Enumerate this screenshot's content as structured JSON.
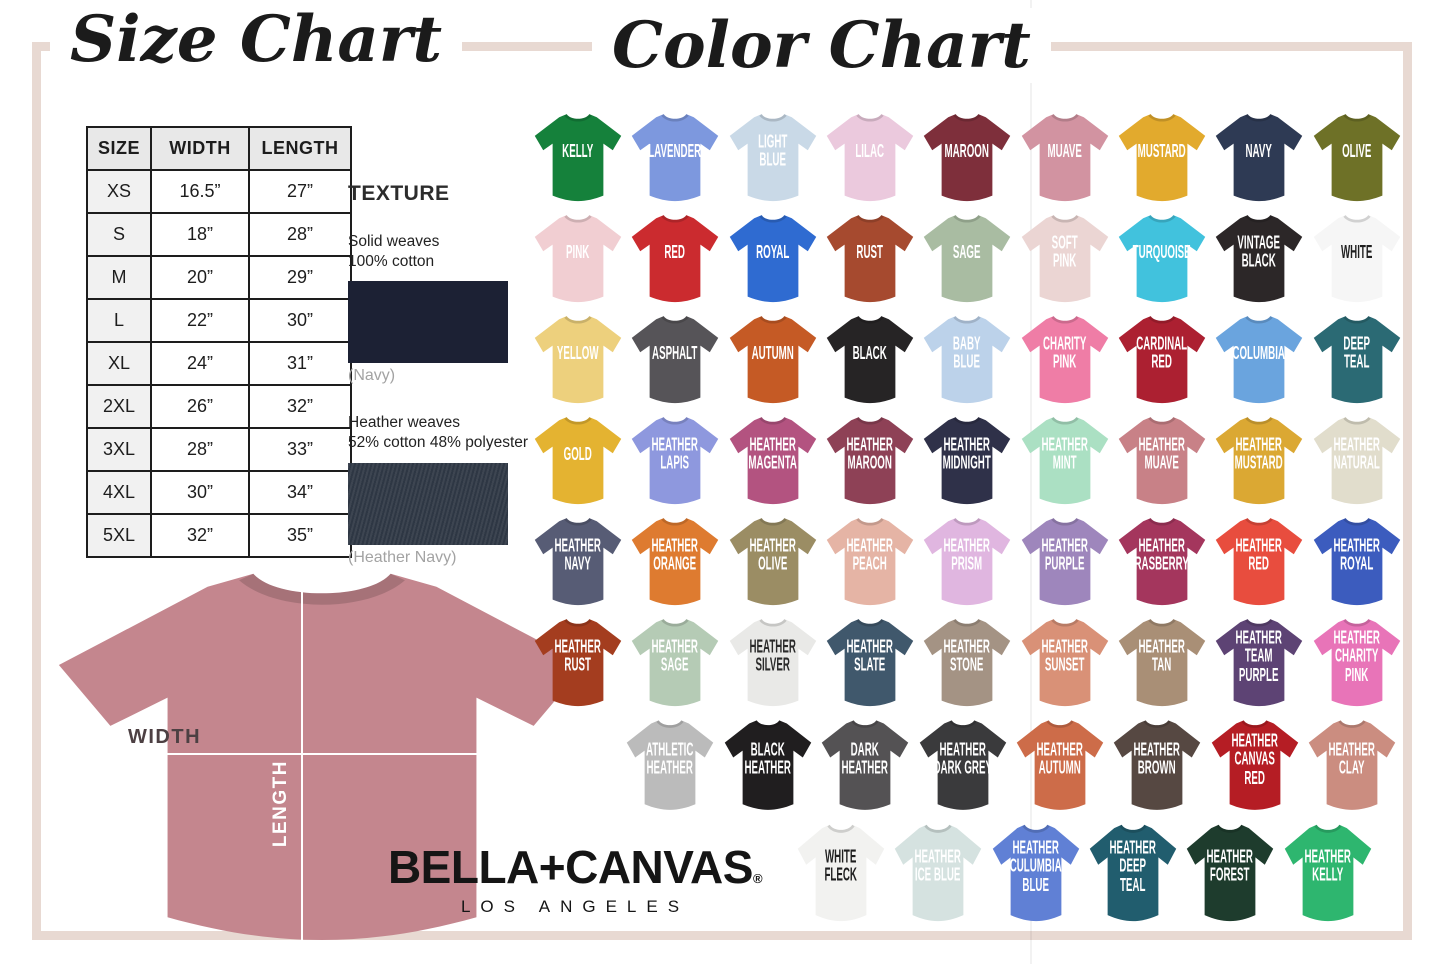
{
  "size_chart": {
    "title": "Size Chart",
    "table": {
      "headers": [
        "SIZE",
        "WIDTH",
        "LENGTH"
      ],
      "rows": [
        [
          "XS",
          "16.5”",
          "27”"
        ],
        [
          "S",
          "18”",
          "28”"
        ],
        [
          "M",
          "20”",
          "29”"
        ],
        [
          "L",
          "22”",
          "30”"
        ],
        [
          "XL",
          "24”",
          "31”"
        ],
        [
          "2XL",
          "26”",
          "32”"
        ],
        [
          "3XL",
          "28”",
          "33”"
        ],
        [
          "4XL",
          "30”",
          "34”"
        ],
        [
          "5XL",
          "32”",
          "35”"
        ]
      ]
    },
    "texture": {
      "heading": "TEXTURE",
      "solid_desc": "Solid weaves\n100% cotton",
      "solid_caption": "(Navy)",
      "solid_hex": "#1c2134",
      "heather_desc": "Heather weaves\n52% cotton 48% polyester",
      "heather_caption": "(Heather Navy)",
      "heather_hex": "#2e3744"
    },
    "mockup": {
      "width_label": "WIDTH",
      "length_label": "LENGTH",
      "shirt_hex": "#c4868e"
    }
  },
  "brand": {
    "name": "BELLA+CANVAS",
    "registered": "®",
    "city": "LOS ANGELES"
  },
  "frame_color": "#e8d9d2",
  "color_chart": {
    "title": "Color Chart",
    "rows": [
      [
        {
          "name": "Kelly",
          "lines": [
            "KELLY"
          ],
          "hex": "#15813b",
          "text": "#ffffff"
        },
        {
          "name": "Lavender",
          "lines": [
            "LAVENDER"
          ],
          "hex": "#7d98de",
          "text": "#ffffff"
        },
        {
          "name": "Light Blue",
          "lines": [
            "LIGHT",
            "BLUE"
          ],
          "hex": "#c9d9e7",
          "text": "#ffffff"
        },
        {
          "name": "Lilac",
          "lines": [
            "LILAC"
          ],
          "hex": "#ebc9dd",
          "text": "#ffffff"
        },
        {
          "name": "Maroon",
          "lines": [
            "MAROON"
          ],
          "hex": "#7e2f3b",
          "text": "#ffffff"
        },
        {
          "name": "Muave",
          "lines": [
            "MUAVE"
          ],
          "hex": "#d293a1",
          "text": "#ffffff"
        },
        {
          "name": "Mustard",
          "lines": [
            "MUSTARD"
          ],
          "hex": "#e2aa2d",
          "text": "#ffffff"
        },
        {
          "name": "Navy",
          "lines": [
            "NAVY"
          ],
          "hex": "#2e3a54",
          "text": "#ffffff"
        },
        {
          "name": "Olive",
          "lines": [
            "OLIVE"
          ],
          "hex": "#6e7127",
          "text": "#ffffff"
        }
      ],
      [
        {
          "name": "Pink",
          "lines": [
            "PINK"
          ],
          "hex": "#f1ced2",
          "text": "#ffffff"
        },
        {
          "name": "Red",
          "lines": [
            "RED"
          ],
          "hex": "#cb2b2f",
          "text": "#ffffff"
        },
        {
          "name": "Royal",
          "lines": [
            "ROYAL"
          ],
          "hex": "#2f6bd1",
          "text": "#ffffff"
        },
        {
          "name": "Rust",
          "lines": [
            "RUST"
          ],
          "hex": "#a64a2f",
          "text": "#ffffff"
        },
        {
          "name": "Sage",
          "lines": [
            "SAGE"
          ],
          "hex": "#a9bca2",
          "text": "#ffffff"
        },
        {
          "name": "Soft Pink",
          "lines": [
            "SOFT",
            "PINK"
          ],
          "hex": "#ebd5d3",
          "text": "#ffffff"
        },
        {
          "name": "Turquoise",
          "lines": [
            "TURQUOISE"
          ],
          "hex": "#41c2dd",
          "text": "#ffffff"
        },
        {
          "name": "Vintage Black",
          "lines": [
            "VINTAGE",
            "BLACK"
          ],
          "hex": "#2c2728",
          "text": "#ffffff"
        },
        {
          "name": "White",
          "lines": [
            "WHITE"
          ],
          "hex": "#f6f6f6",
          "text": "#1f1f1f"
        }
      ],
      [
        {
          "name": "Yellow",
          "lines": [
            "YELLOW"
          ],
          "hex": "#edd07d",
          "text": "#ffffff"
        },
        {
          "name": "Asphalt",
          "lines": [
            "ASPHALT"
          ],
          "hex": "#565458",
          "text": "#ffffff"
        },
        {
          "name": "Autumn",
          "lines": [
            "AUTUMN"
          ],
          "hex": "#c55a25",
          "text": "#ffffff"
        },
        {
          "name": "Black",
          "lines": [
            "BLACK"
          ],
          "hex": "#262425",
          "text": "#ffffff"
        },
        {
          "name": "Baby Blue",
          "lines": [
            "BABY",
            "BLUE"
          ],
          "hex": "#bcd2ea",
          "text": "#ffffff"
        },
        {
          "name": "Charity Pink",
          "lines": [
            "CHARITY",
            "PINK"
          ],
          "hex": "#ef7da6",
          "text": "#ffffff"
        },
        {
          "name": "Cardinal Red",
          "lines": [
            "CARDINAL",
            "RED"
          ],
          "hex": "#ac2031",
          "text": "#ffffff"
        },
        {
          "name": "Columbia",
          "lines": [
            "COLUMBIA"
          ],
          "hex": "#6aa4de",
          "text": "#ffffff"
        },
        {
          "name": "Deep Teal",
          "lines": [
            "DEEP",
            "TEAL"
          ],
          "hex": "#2b6a74",
          "text": "#ffffff"
        }
      ],
      [
        {
          "name": "Gold",
          "lines": [
            "GOLD"
          ],
          "hex": "#e4b331",
          "text": "#ffffff"
        },
        {
          "name": "Heather Lapis",
          "lines": [
            "HEATHER",
            "LAPIS"
          ],
          "hex": "#8e98de",
          "text": "#ffffff"
        },
        {
          "name": "Heather Magenta",
          "lines": [
            "HEATHER",
            "MAGENTA"
          ],
          "hex": "#b35380",
          "text": "#ffffff"
        },
        {
          "name": "Heather Maroon",
          "lines": [
            "HEATHER",
            "MAROON"
          ],
          "hex": "#8e4156",
          "text": "#ffffff"
        },
        {
          "name": "Heather Midnight",
          "lines": [
            "HEATHER",
            "MIDNIGHT"
          ],
          "hex": "#2f3149",
          "text": "#ffffff"
        },
        {
          "name": "Heather Mint",
          "lines": [
            "HEATHER",
            "MINT"
          ],
          "hex": "#abe0c3",
          "text": "#ffffff"
        },
        {
          "name": "Heather Muave",
          "lines": [
            "HEATHER",
            "MUAVE"
          ],
          "hex": "#c88187",
          "text": "#ffffff"
        },
        {
          "name": "Heather Mustard",
          "lines": [
            "HEATHER",
            "MUSTARD"
          ],
          "hex": "#dba833",
          "text": "#ffffff"
        },
        {
          "name": "Heather Natural",
          "lines": [
            "HEATHER",
            "NATURAL"
          ],
          "hex": "#e1ddcc",
          "text": "#ffffff"
        }
      ],
      [
        {
          "name": "Heather Navy",
          "lines": [
            "HEATHER",
            "NAVY"
          ],
          "hex": "#575c75",
          "text": "#ffffff"
        },
        {
          "name": "Heather Orange",
          "lines": [
            "HEATHER",
            "ORANGE"
          ],
          "hex": "#de7b30",
          "text": "#ffffff"
        },
        {
          "name": "Heather Olive",
          "lines": [
            "HEATHER",
            "OLIVE"
          ],
          "hex": "#9b8d64",
          "text": "#ffffff"
        },
        {
          "name": "Heather Peach",
          "lines": [
            "HEATHER",
            "PEACH"
          ],
          "hex": "#e5b4a5",
          "text": "#ffffff"
        },
        {
          "name": "Heather Prism",
          "lines": [
            "HEATHER",
            "PRISM"
          ],
          "hex": "#e0b6e0",
          "text": "#ffffff"
        },
        {
          "name": "Heather Purple",
          "lines": [
            "HEATHER",
            "PURPLE"
          ],
          "hex": "#9e86bc",
          "text": "#ffffff"
        },
        {
          "name": "Heather Rasberry",
          "lines": [
            "HEATHER",
            "RASBERRY"
          ],
          "hex": "#a4365d",
          "text": "#ffffff"
        },
        {
          "name": "Heather Red",
          "lines": [
            "HEATHER",
            "RED"
          ],
          "hex": "#e84d3e",
          "text": "#ffffff"
        },
        {
          "name": "Heather Royal",
          "lines": [
            "HEATHER",
            "ROYAL"
          ],
          "hex": "#3c5cbe",
          "text": "#ffffff"
        }
      ],
      [
        {
          "name": "Heather Rust",
          "lines": [
            "HEATHER",
            "RUST"
          ],
          "hex": "#a43d1f",
          "text": "#ffffff"
        },
        {
          "name": "Heather Sage",
          "lines": [
            "HEATHER",
            "SAGE"
          ],
          "hex": "#b5cbb5",
          "text": "#ffffff"
        },
        {
          "name": "Heather Silver",
          "lines": [
            "HEATHER",
            "SILVER"
          ],
          "hex": "#e9e9e7",
          "text": "#2a2a2a"
        },
        {
          "name": "Heather Slate",
          "lines": [
            "HEATHER",
            "SLATE"
          ],
          "hex": "#40586c",
          "text": "#ffffff"
        },
        {
          "name": "Heather Stone",
          "lines": [
            "HEATHER",
            "STONE"
          ],
          "hex": "#a49384",
          "text": "#ffffff"
        },
        {
          "name": "Heather Sunset",
          "lines": [
            "HEATHER",
            "SUNSET"
          ],
          "hex": "#d99177",
          "text": "#ffffff"
        },
        {
          "name": "Heather Tan",
          "lines": [
            "HEATHER",
            "TAN"
          ],
          "hex": "#a98f76",
          "text": "#ffffff"
        },
        {
          "name": "Heather Team Purple",
          "lines": [
            "HEATHER",
            "TEAM",
            "PURPLE"
          ],
          "hex": "#5d4374",
          "text": "#ffffff"
        },
        {
          "name": "Heather Charity Pink",
          "lines": [
            "HEATHER",
            "CHARITY",
            "PINK"
          ],
          "hex": "#e874b8",
          "text": "#ffffff"
        }
      ],
      [
        {
          "name": "Athletic Heather",
          "lines": [
            "ATHLETIC",
            "HEATHER"
          ],
          "hex": "#bbbbbb",
          "text": "#ffffff"
        },
        {
          "name": "Black Heather",
          "lines": [
            "BLACK",
            "HEATHER"
          ],
          "hex": "#201e1f",
          "text": "#ffffff"
        },
        {
          "name": "Dark Heather",
          "lines": [
            "DARK",
            "HEATHER"
          ],
          "hex": "#545254",
          "text": "#ffffff"
        },
        {
          "name": "Heather Dark Grey",
          "lines": [
            "HEATHER",
            "DARK GREY"
          ],
          "hex": "#3a3a3c",
          "text": "#ffffff"
        },
        {
          "name": "Heather Autumn",
          "lines": [
            "HEATHER",
            "AUTUMN"
          ],
          "hex": "#cd6c49",
          "text": "#ffffff"
        },
        {
          "name": "Heather Brown",
          "lines": [
            "HEATHER",
            "BROWN"
          ],
          "hex": "#564842",
          "text": "#ffffff"
        },
        {
          "name": "Heather Canvas Red",
          "lines": [
            "HEATHER",
            "CANVAS",
            "RED"
          ],
          "hex": "#b51d24",
          "text": "#ffffff"
        },
        {
          "name": "Heather Clay",
          "lines": [
            "HEATHER",
            "CLAY"
          ],
          "hex": "#cb8d80",
          "text": "#ffffff"
        }
      ],
      [
        {
          "name": "White Fleck",
          "lines": [
            "WHITE",
            "FLECK"
          ],
          "hex": "#f2f2f0",
          "text": "#1f1f1f"
        },
        {
          "name": "Heather Ice Blue",
          "lines": [
            "HEATHER",
            "ICE BLUE"
          ],
          "hex": "#d5e2e0",
          "text": "#ffffff"
        },
        {
          "name": "Heather Culumbia Blue",
          "lines": [
            "HEATHER",
            "CULUMBIA",
            "BLUE"
          ],
          "hex": "#6080d5",
          "text": "#ffffff"
        },
        {
          "name": "Heather Deep Teal",
          "lines": [
            "HEATHER",
            "DEEP",
            "TEAL"
          ],
          "hex": "#215d6e",
          "text": "#ffffff"
        },
        {
          "name": "Heather Forest",
          "lines": [
            "HEATHER",
            "FOREST"
          ],
          "hex": "#1e3c2d",
          "text": "#ffffff"
        },
        {
          "name": "Heather Kelly",
          "lines": [
            "HEATHER",
            "KELLY"
          ],
          "hex": "#2eb66f",
          "text": "#ffffff"
        }
      ]
    ]
  }
}
